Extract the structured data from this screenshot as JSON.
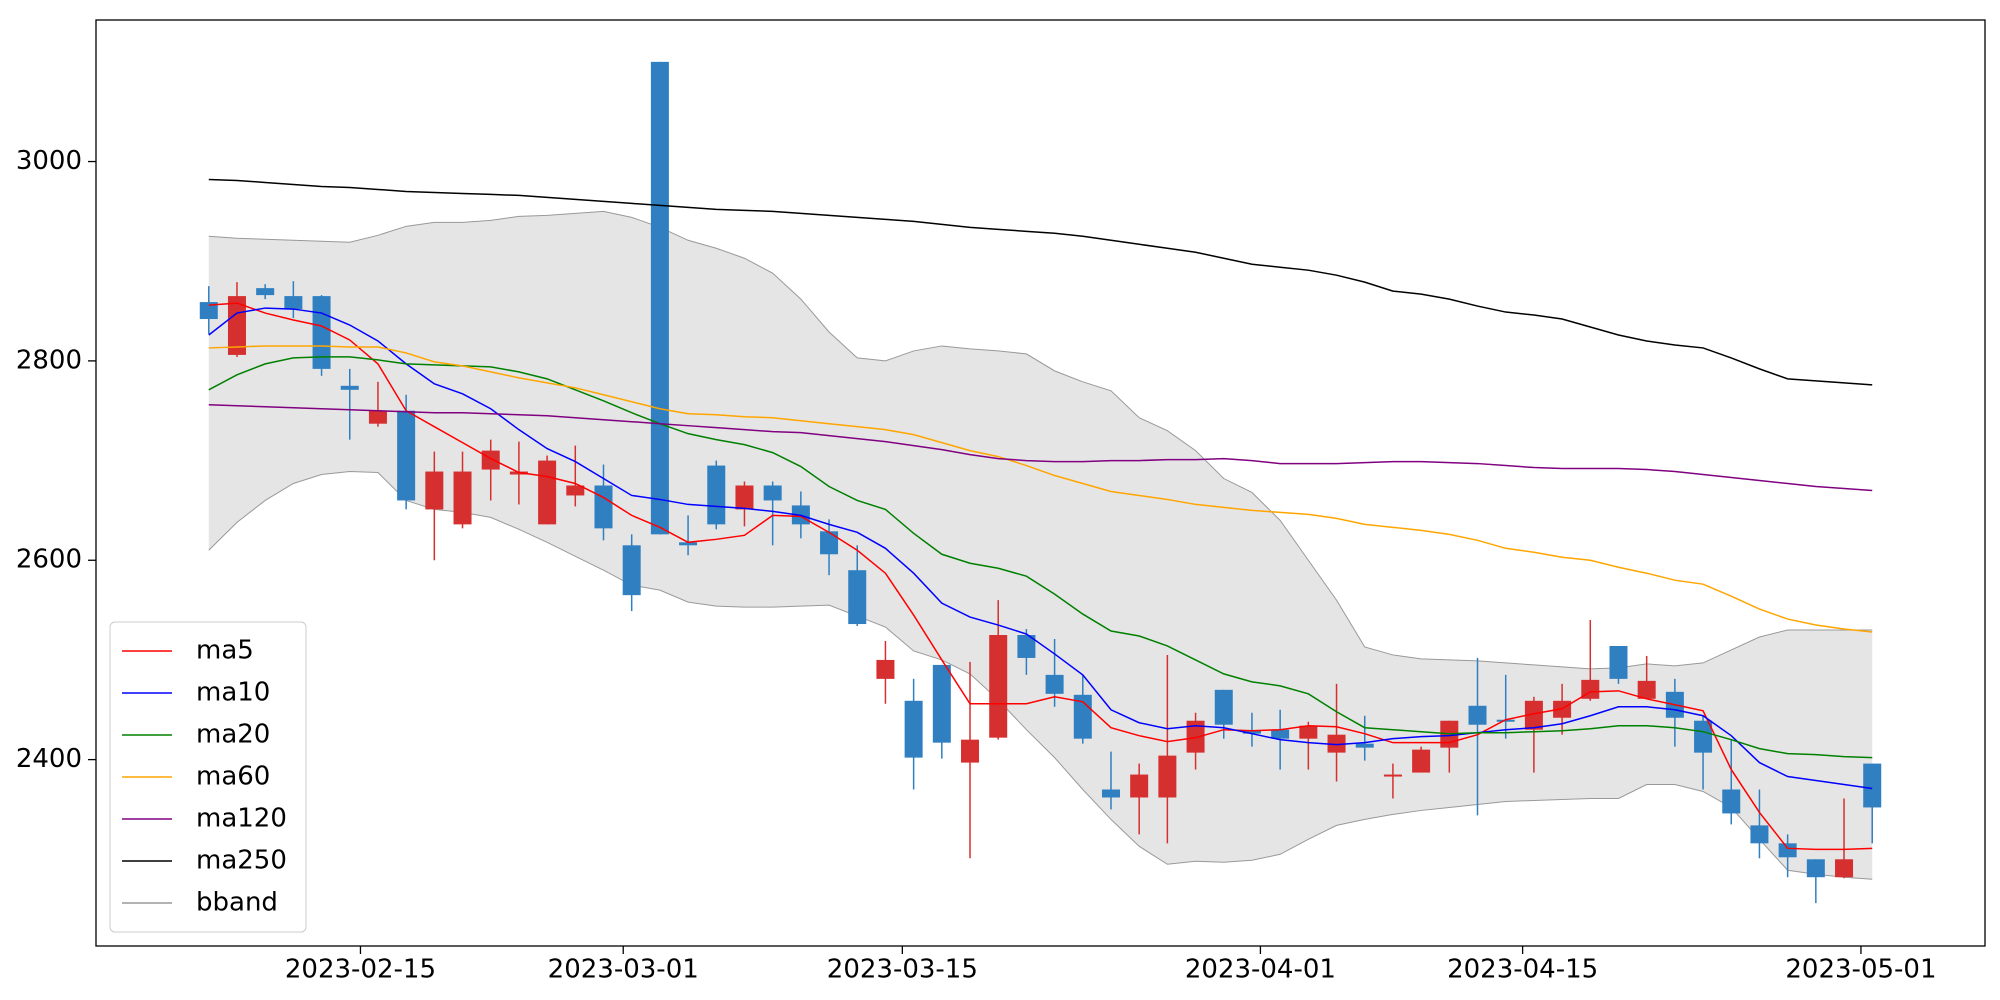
{
  "chart_data": {
    "type": "candlestick",
    "xlim": [
      -4,
      63
    ],
    "xticks": [
      {
        "value": 5.38,
        "label": "2023-02-15"
      },
      {
        "value": 14.7,
        "label": "2023-03-01"
      },
      {
        "value": 24.6,
        "label": "2023-03-15"
      },
      {
        "value": 37.3,
        "label": "2023-04-01"
      },
      {
        "value": 46.6,
        "label": "2023-04-15"
      },
      {
        "value": 58.6,
        "label": "2023-05-01"
      }
    ],
    "ylim": [
      2213,
      3142
    ],
    "yticks": [
      2400,
      2600,
      2800,
      3000
    ],
    "up_color": "#d62f2f",
    "down_color": "#2f7fc1",
    "legend": "lower left",
    "open": [
      2859,
      2806,
      2873,
      2865,
      2865,
      2775,
      2737,
      2750,
      2651,
      2636,
      2691,
      2686,
      2636,
      2665,
      2675,
      2615,
      3100,
      2618,
      2695,
      2651,
      2675,
      2655,
      2629,
      2590,
      2481,
      2459,
      2495,
      2397,
      2422,
      2525,
      2485,
      2465,
      2370,
      2362,
      2362,
      2407,
      2470,
      2429,
      2430,
      2421,
      2407,
      2416,
      2383,
      2387,
      2412,
      2454,
      2440,
      2430,
      2442,
      2461,
      2514,
      2461,
      2468,
      2439,
      2370,
      2334,
      2316,
      2300,
      2282,
      2396
    ],
    "high": [
      2875,
      2879,
      2877,
      2880,
      2866,
      2792,
      2779,
      2766,
      2709,
      2709,
      2721,
      2719,
      2705,
      2715,
      2696,
      2626,
      3100,
      2645,
      2700,
      2679,
      2679,
      2669,
      2641,
      2615,
      2519,
      2481,
      2495,
      2498,
      2560,
      2531,
      2521,
      2485,
      2408,
      2396,
      2505,
      2447,
      2470,
      2447,
      2450,
      2438,
      2476,
      2444,
      2396,
      2413,
      2439,
      2502,
      2485,
      2463,
      2476,
      2540,
      2514,
      2504,
      2481,
      2444,
      2420,
      2370,
      2325,
      2300,
      2361,
      2396
    ],
    "low": [
      2827,
      2804,
      2862,
      2843,
      2785,
      2721,
      2734,
      2651,
      2600,
      2632,
      2660,
      2656,
      2636,
      2654,
      2620,
      2549,
      2626,
      2605,
      2631,
      2634,
      2615,
      2622,
      2585,
      2534,
      2456,
      2370,
      2401,
      2301,
      2420,
      2485,
      2453,
      2416,
      2350,
      2325,
      2316,
      2390,
      2421,
      2413,
      2390,
      2390,
      2378,
      2399,
      2361,
      2387,
      2387,
      2344,
      2421,
      2387,
      2425,
      2459,
      2476,
      2461,
      2413,
      2370,
      2335,
      2301,
      2282,
      2256,
      2281,
      2316
    ],
    "close": [
      2842,
      2865,
      2866,
      2852,
      2792,
      2771,
      2750,
      2660,
      2689,
      2689,
      2710,
      2689,
      2700,
      2675,
      2632,
      2565,
      2626,
      2615,
      2636,
      2675,
      2660,
      2636,
      2606,
      2536,
      2500,
      2402,
      2417,
      2420,
      2525,
      2502,
      2466,
      2421,
      2362,
      2385,
      2404,
      2439,
      2435,
      2426,
      2421,
      2434,
      2425,
      2412,
      2385,
      2410,
      2439,
      2435,
      2438,
      2459,
      2459,
      2480,
      2481,
      2479,
      2442,
      2407,
      2346,
      2316,
      2302,
      2282,
      2300,
      2352
    ],
    "series": [
      {
        "name": "ma5",
        "color": "#ff0000",
        "values": [
          2856,
          2858,
          2848,
          2841,
          2835,
          2821,
          2797,
          2750,
          2734,
          2718,
          2702,
          2688,
          2684,
          2677,
          2663,
          2645,
          2633,
          2618,
          2621,
          2625,
          2645,
          2644,
          2628,
          2610,
          2587,
          2545,
          2500,
          2456,
          2456,
          2456,
          2463,
          2458,
          2432,
          2424,
          2418,
          2422,
          2430,
          2429,
          2430,
          2434,
          2433,
          2426,
          2417,
          2417,
          2417,
          2425,
          2440,
          2446,
          2451,
          2468,
          2469,
          2461,
          2455,
          2449,
          2390,
          2347,
          2311,
          2310,
          2310,
          2311
        ]
      },
      {
        "name": "ma10",
        "color": "#0000ff",
        "values": [
          2826,
          2848,
          2853,
          2852,
          2848,
          2836,
          2820,
          2797,
          2777,
          2767,
          2752,
          2731,
          2712,
          2699,
          2682,
          2665,
          2661,
          2656,
          2654,
          2652,
          2649,
          2645,
          2636,
          2628,
          2612,
          2587,
          2557,
          2543,
          2535,
          2526,
          2506,
          2485,
          2450,
          2437,
          2431,
          2434,
          2432,
          2426,
          2420,
          2417,
          2415,
          2417,
          2421,
          2423,
          2424,
          2427,
          2430,
          2432,
          2436,
          2444,
          2453,
          2453,
          2450,
          2444,
          2424,
          2397,
          2383,
          2379,
          2375,
          2371
        ]
      },
      {
        "name": "ma20",
        "color": "#008000",
        "values": [
          2771,
          2786,
          2797,
          2803,
          2804,
          2804,
          2801,
          2797,
          2796,
          2795,
          2794,
          2789,
          2782,
          2771,
          2760,
          2748,
          2737,
          2727,
          2721,
          2716,
          2708,
          2694,
          2674,
          2660,
          2651,
          2627,
          2606,
          2597,
          2592,
          2584,
          2566,
          2546,
          2529,
          2524,
          2514,
          2500,
          2486,
          2478,
          2474,
          2466,
          2448,
          2432,
          2430,
          2428,
          2426,
          2427,
          2427,
          2428,
          2429,
          2431,
          2434,
          2434,
          2432,
          2428,
          2420,
          2411,
          2406,
          2405,
          2403,
          2402
        ]
      },
      {
        "name": "ma60",
        "color": "#ffa500",
        "values": [
          2813,
          2814,
          2815,
          2815,
          2815,
          2814,
          2814,
          2808,
          2799,
          2795,
          2789,
          2783,
          2778,
          2773,
          2766,
          2759,
          2752,
          2747,
          2746,
          2744,
          2743,
          2740,
          2737,
          2734,
          2731,
          2726,
          2718,
          2710,
          2704,
          2695,
          2685,
          2677,
          2669,
          2665,
          2661,
          2656,
          2653,
          2650,
          2648,
          2646,
          2642,
          2636,
          2633,
          2630,
          2626,
          2620,
          2612,
          2608,
          2603,
          2600,
          2593,
          2587,
          2580,
          2576,
          2564,
          2551,
          2541,
          2535,
          2531,
          2528
        ]
      },
      {
        "name": "ma120",
        "color": "#800080",
        "values": [
          2756,
          2755,
          2754,
          2753,
          2752,
          2751,
          2750,
          2749,
          2748,
          2748,
          2747,
          2746,
          2745,
          2743,
          2741,
          2739,
          2737,
          2735,
          2733,
          2731,
          2729,
          2728,
          2725,
          2722,
          2719,
          2715,
          2711,
          2706,
          2702,
          2700,
          2699,
          2699,
          2700,
          2700,
          2701,
          2701,
          2702,
          2700,
          2697,
          2697,
          2697,
          2698,
          2699,
          2699,
          2698,
          2697,
          2695,
          2693,
          2692,
          2692,
          2692,
          2691,
          2689,
          2686,
          2683,
          2680,
          2677,
          2674,
          2672,
          2670
        ]
      },
      {
        "name": "ma250",
        "color": "#000000",
        "values": [
          2982,
          2981,
          2979,
          2977,
          2975,
          2974,
          2972,
          2970,
          2969,
          2968,
          2967,
          2966,
          2964,
          2962,
          2960,
          2958,
          2956,
          2954,
          2952,
          2951,
          2950,
          2948,
          2946,
          2944,
          2942,
          2940,
          2937,
          2934,
          2932,
          2930,
          2928,
          2925,
          2921,
          2917,
          2913,
          2909,
          2903,
          2897,
          2894,
          2891,
          2886,
          2879,
          2870,
          2867,
          2862,
          2855,
          2849,
          2846,
          2842,
          2834,
          2826,
          2820,
          2816,
          2813,
          2803,
          2792,
          2782,
          2780,
          2778,
          2776
        ]
      }
    ],
    "bband": {
      "name": "bband",
      "color": "#e5e5e5",
      "edge_color": "#999999",
      "upper": [
        2925,
        2923,
        2922,
        2921,
        2920,
        2919,
        2926,
        2935,
        2939,
        2939,
        2941,
        2945,
        2946,
        2948,
        2950,
        2944,
        2934,
        2921,
        2913,
        2903,
        2888,
        2862,
        2829,
        2803,
        2800,
        2810,
        2815,
        2812,
        2810,
        2807,
        2790,
        2779,
        2770,
        2743,
        2730,
        2710,
        2682,
        2668,
        2640,
        2600,
        2560,
        2513,
        2505,
        2501,
        2500,
        2499,
        2497,
        2495,
        2493,
        2491,
        2492,
        2496,
        2494,
        2497,
        2510,
        2523,
        2530,
        2530,
        2530,
        2530
      ],
      "lower": [
        2610,
        2638,
        2660,
        2677,
        2686,
        2689,
        2688,
        2660,
        2651,
        2648,
        2643,
        2631,
        2618,
        2604,
        2590,
        2575,
        2570,
        2558,
        2554,
        2553,
        2553,
        2554,
        2555,
        2544,
        2533,
        2509,
        2500,
        2486,
        2460,
        2430,
        2402,
        2370,
        2340,
        2313,
        2295,
        2298,
        2297,
        2299,
        2305,
        2320,
        2334,
        2340,
        2345,
        2349,
        2352,
        2355,
        2358,
        2359,
        2360,
        2361,
        2361,
        2375,
        2375,
        2368,
        2352,
        2320,
        2289,
        2285,
        2282,
        2280
      ]
    }
  }
}
